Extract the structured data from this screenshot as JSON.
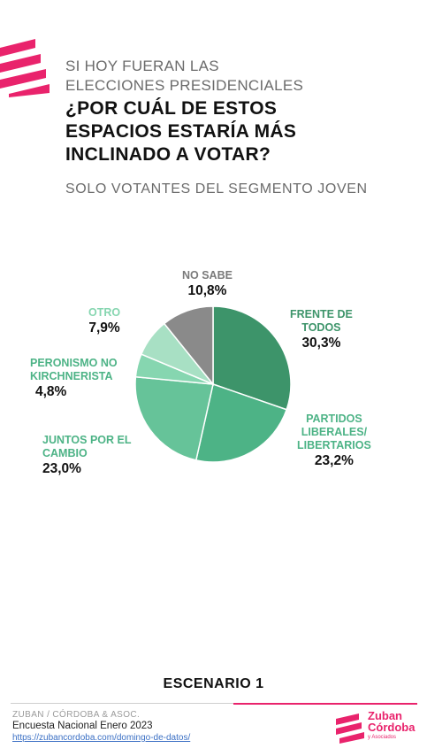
{
  "header": {
    "line1": "SI HOY FUERAN LAS",
    "line2": "ELECCIONES PRESIDENCIALES",
    "q1": "¿POR CUÁL DE ESTOS",
    "q2": "ESPACIOS ESTARÍA MÁS",
    "q3": "INCLINADO A VOTAR?",
    "subtitle": "SOLO VOTANTES DEL SEGMENTO JOVEN"
  },
  "colors": {
    "accent": "#e9236c",
    "slices": [
      "#3d946a",
      "#4db386",
      "#66c399",
      "#86d6b0",
      "#a8e0c4",
      "#8a8a8a"
    ]
  },
  "chart_data": {
    "type": "pie",
    "title": "",
    "slices": [
      {
        "label": "FRENTE DE TODOS",
        "value": 30.3,
        "display": "30,3%"
      },
      {
        "label": "PARTIDOS LIBERALES/ LIBERTARIOS",
        "value": 23.2,
        "display": "23,2%"
      },
      {
        "label": "JUNTOS POR EL CAMBIO",
        "value": 23.0,
        "display": "23,0%"
      },
      {
        "label": "PERONISMO NO KIRCHNERISTA",
        "value": 4.8,
        "display": "4,8%"
      },
      {
        "label": "OTRO",
        "value": 7.9,
        "display": "7,9%"
      },
      {
        "label": "NO SABE",
        "value": 10.8,
        "display": "10,8%"
      }
    ]
  },
  "labels": {
    "frente": {
      "name1": "FRENTE DE",
      "name2": "TODOS",
      "value": "30,3%"
    },
    "liberales": {
      "name1": "PARTIDOS",
      "name2": "LIBERALES/",
      "name3": "LIBERTARIOS",
      "value": "23,2%"
    },
    "juntos": {
      "name1": "JUNTOS POR EL",
      "name2": "CAMBIO",
      "value": "23,0%"
    },
    "peronismo": {
      "name1": "PERONISMO NO",
      "name2": "KIRCHNERISTA",
      "value": "4,8%"
    },
    "otro": {
      "name1": "OTRO",
      "value": "7,9%"
    },
    "nosabe": {
      "name1": "NO SABE",
      "value": "10,8%"
    }
  },
  "scenario": "ESCENARIO 1",
  "footer": {
    "org": "ZUBAN / CÓRDOBA & ASOC.",
    "survey": "Encuesta Nacional Enero 2023",
    "link": "https://zubancordoba.com/domingo-de-datos/",
    "brand_line1": "Zuban",
    "brand_line2": "Córdoba",
    "brand_sub": "y Asociados"
  }
}
